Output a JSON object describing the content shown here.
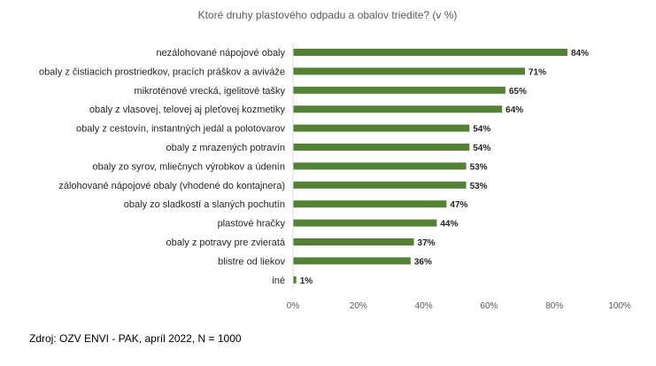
{
  "chart_data": {
    "type": "bar",
    "orientation": "horizontal",
    "title": "Ktoré druhy plastového odpadu a obalov triedite? (v %)",
    "categories": [
      "nezálohované nápojové obaly",
      "obaly z čistiacich prostriedkov, pracích práškov a aviváže",
      "mikroténové vrecká, igelitové tašky",
      "obaly z vlasovej, telovej aj pleťovej kozmetiky",
      "obaly z cestovín, instantných jedál a polotovarov",
      "obaly z mrazených potravín",
      "obaly zo syrov, mliečnych výrobkov a údenín",
      "zálohované nápojové obaly (vhodené do kontajnera)",
      "obaly zo sladkostí a slaných pochutín",
      "plastové hračky",
      "obaly z potravy pre zvieratá",
      "blistre od liekov",
      "iné"
    ],
    "values": [
      84,
      71,
      65,
      64,
      54,
      54,
      53,
      53,
      47,
      44,
      37,
      36,
      1
    ],
    "value_labels": [
      "84%",
      "71%",
      "65%",
      "64%",
      "54%",
      "54%",
      "53%",
      "53%",
      "47%",
      "44%",
      "37%",
      "36%",
      "1%"
    ],
    "xlim": [
      0,
      100
    ],
    "x_ticks": [
      "0%",
      "20%",
      "40%",
      "60%",
      "80%",
      "100%"
    ],
    "grid": false,
    "bar_color": "#548235"
  },
  "source_note": "Zdroj: OZV ENVI - PAK, apríl 2022, N = 1000"
}
